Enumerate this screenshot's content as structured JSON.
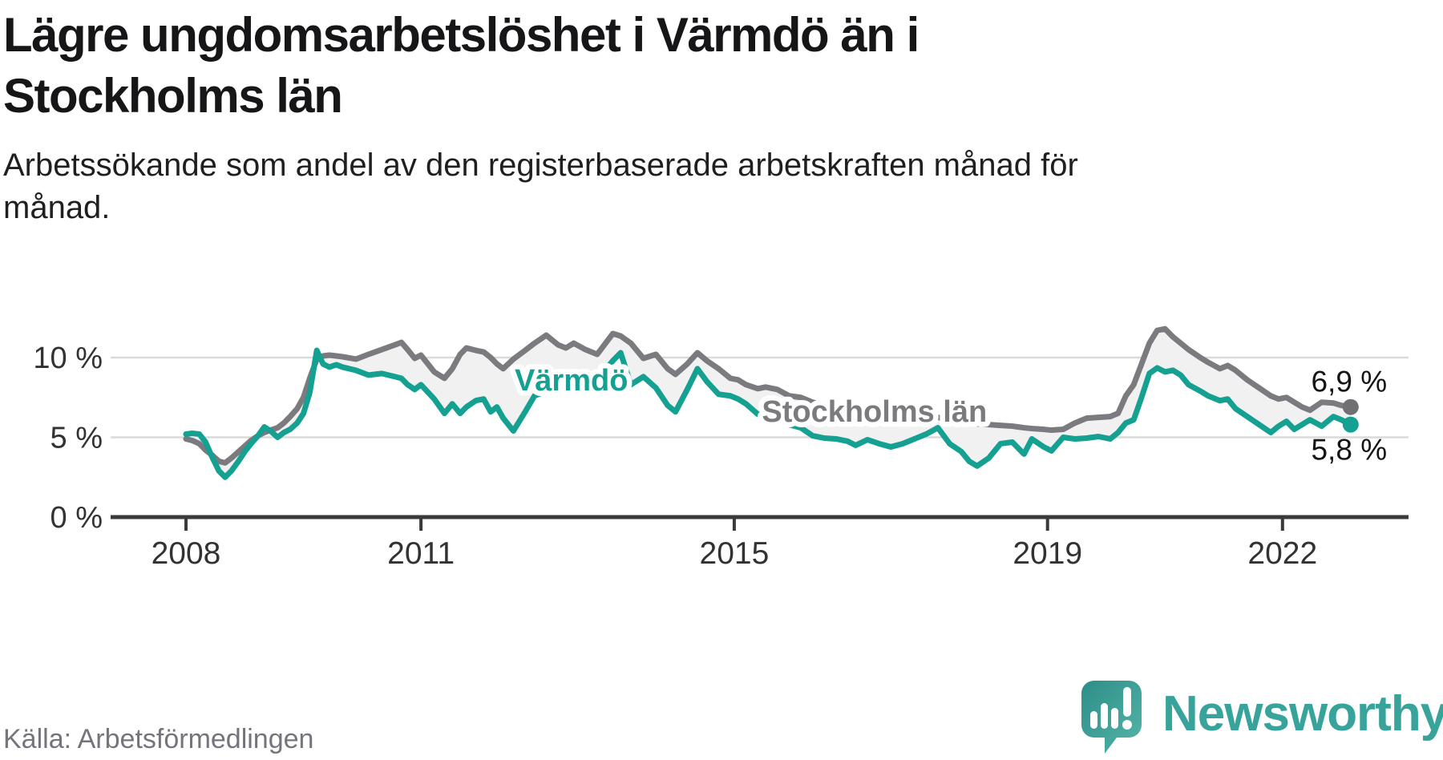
{
  "header": {
    "title": "Lägre ungdomsarbetslöshet i Värmdö än i\nStockholms län",
    "subtitle": "Arbetssökande som andel av den registerbaserade arbetskraften månad för\nmånad."
  },
  "footer": {
    "source": "Källa: Arbetsförmedlingen",
    "brand": "Newsworthy"
  },
  "chart_data": {
    "type": "line",
    "title": "Lägre ungdomsarbetslöshet i Värmdö än i Stockholms län",
    "subtitle": "Arbetssökande som andel av den registerbaserade arbetskraften månad för månad.",
    "source": "Källa: Arbetsförmedlingen",
    "unit": "%",
    "frequency": "monthly",
    "grid": "horizontal",
    "legend": "inline-labels",
    "background": "#ffffff",
    "area_fill_between_series": "#f1f1f1",
    "x_range": [
      2008.0,
      2022.87
    ],
    "x": [
      2008.0,
      2008.08,
      2008.17,
      2008.25,
      2008.33,
      2008.42,
      2008.5,
      2008.58,
      2008.67,
      2008.75,
      2008.83,
      2008.92,
      2009.0,
      2009.08,
      2009.17,
      2009.25,
      2009.33,
      2009.42,
      2009.5,
      2009.58,
      2009.67,
      2009.75,
      2009.83,
      2009.92,
      2010.0,
      2010.17,
      2010.33,
      2010.5,
      2010.67,
      2010.75,
      2010.83,
      2010.92,
      2011.0,
      2011.17,
      2011.3,
      2011.4,
      2011.5,
      2011.58,
      2011.7,
      2011.8,
      2011.89,
      2011.97,
      2012.05,
      2012.18,
      2012.33,
      2012.45,
      2012.6,
      2012.75,
      2012.85,
      2012.95,
      2013.1,
      2013.25,
      2013.45,
      2013.55,
      2013.68,
      2013.84,
      2014.0,
      2014.15,
      2014.25,
      2014.4,
      2014.53,
      2014.65,
      2014.8,
      2014.95,
      2015.05,
      2015.15,
      2015.3,
      2015.4,
      2015.55,
      2015.7,
      2015.85,
      2016.0,
      2016.15,
      2016.3,
      2016.45,
      2016.55,
      2016.7,
      2016.85,
      2017.0,
      2017.15,
      2017.3,
      2017.45,
      2017.6,
      2017.75,
      2017.9,
      2018.0,
      2018.1,
      2018.25,
      2018.4,
      2018.55,
      2018.7,
      2018.8,
      2018.95,
      2019.05,
      2019.2,
      2019.35,
      2019.5,
      2019.65,
      2019.8,
      2019.9,
      2020.0,
      2020.1,
      2020.2,
      2020.3,
      2020.4,
      2020.5,
      2020.6,
      2020.7,
      2020.8,
      2020.95,
      2021.05,
      2021.2,
      2021.3,
      2021.4,
      2021.55,
      2021.7,
      2021.85,
      2021.95,
      2022.05,
      2022.15,
      2022.25,
      2022.35,
      2022.5,
      2022.65,
      2022.75,
      2022.87
    ],
    "series": [
      {
        "name": "Värmdö",
        "color": "#14a192",
        "dot_color": "#14a192",
        "end_value": 5.8,
        "end_label": "5,8 %",
        "label_anchor": {
          "x": 2012.92,
          "y": 8.59
        },
        "values": [
          5.2,
          5.25,
          5.2,
          4.7,
          3.8,
          2.9,
          2.5,
          2.9,
          3.5,
          4.1,
          4.6,
          5.1,
          5.65,
          5.4,
          5.0,
          5.3,
          5.5,
          5.9,
          6.5,
          7.8,
          10.45,
          9.6,
          9.4,
          9.55,
          9.4,
          9.2,
          8.9,
          9.0,
          8.8,
          8.7,
          8.3,
          8.0,
          8.3,
          7.4,
          6.5,
          7.1,
          6.5,
          6.9,
          7.3,
          7.4,
          6.6,
          6.9,
          6.2,
          5.4,
          6.6,
          7.6,
          7.9,
          8.1,
          8.2,
          8.3,
          8.45,
          8.6,
          9.8,
          10.3,
          8.3,
          8.8,
          8.1,
          7.0,
          6.6,
          8.0,
          9.3,
          8.5,
          7.7,
          7.6,
          7.4,
          7.1,
          6.45,
          6.3,
          6.2,
          5.8,
          5.6,
          5.1,
          4.95,
          4.9,
          4.75,
          4.5,
          4.85,
          4.6,
          4.4,
          4.6,
          4.9,
          5.2,
          5.6,
          4.6,
          4.1,
          3.5,
          3.2,
          3.7,
          4.6,
          4.7,
          3.95,
          4.9,
          4.4,
          4.15,
          5.0,
          4.9,
          4.95,
          5.05,
          4.9,
          5.3,
          5.9,
          6.1,
          7.5,
          9.0,
          9.35,
          9.1,
          9.2,
          8.9,
          8.3,
          7.9,
          7.6,
          7.3,
          7.4,
          6.8,
          6.3,
          5.8,
          5.3,
          5.7,
          6.0,
          5.5,
          5.8,
          6.1,
          5.7,
          6.3,
          6.1,
          5.8
        ]
      },
      {
        "name": "Stockholms län",
        "color": "#7a7a7f",
        "dot_color": "#6f6f74",
        "end_value": 6.9,
        "end_label": "6,9 %",
        "label_anchor": {
          "x": 2016.79,
          "y": 6.63
        },
        "values": [
          4.9,
          4.8,
          4.6,
          4.2,
          3.9,
          3.5,
          3.4,
          3.7,
          4.1,
          4.45,
          4.8,
          5.1,
          5.3,
          5.45,
          5.6,
          5.9,
          6.3,
          6.8,
          7.5,
          8.7,
          9.9,
          10.1,
          10.15,
          10.1,
          10.05,
          9.9,
          10.2,
          10.5,
          10.8,
          10.95,
          10.5,
          9.95,
          10.15,
          9.1,
          8.7,
          9.3,
          10.2,
          10.6,
          10.45,
          10.35,
          10.0,
          9.6,
          9.3,
          9.9,
          10.45,
          10.9,
          11.4,
          10.8,
          10.6,
          10.9,
          10.5,
          10.2,
          11.5,
          11.35,
          10.9,
          9.95,
          10.2,
          9.3,
          8.95,
          9.6,
          10.3,
          9.8,
          9.3,
          8.7,
          8.6,
          8.3,
          8.05,
          8.15,
          8.0,
          7.6,
          7.5,
          7.2,
          7.0,
          6.85,
          6.75,
          6.7,
          6.6,
          6.5,
          6.45,
          6.4,
          6.35,
          6.3,
          6.25,
          6.1,
          6.0,
          5.9,
          5.85,
          5.8,
          5.75,
          5.7,
          5.6,
          5.55,
          5.5,
          5.45,
          5.5,
          5.9,
          6.2,
          6.25,
          6.3,
          6.5,
          7.6,
          8.3,
          9.6,
          10.9,
          11.7,
          11.8,
          11.3,
          10.9,
          10.5,
          10.0,
          9.7,
          9.3,
          9.5,
          9.2,
          8.6,
          8.1,
          7.6,
          7.4,
          7.5,
          7.2,
          6.9,
          6.7,
          7.2,
          7.15,
          7.0,
          6.9
        ]
      }
    ],
    "x_axis": {
      "ticks": [
        {
          "value": 2008,
          "label": "2008"
        },
        {
          "value": 2011,
          "label": "2011"
        },
        {
          "value": 2015,
          "label": "2015"
        },
        {
          "value": 2019,
          "label": "2019"
        },
        {
          "value": 2022,
          "label": "2022"
        }
      ]
    },
    "y_axis": {
      "range": [
        0,
        13.3
      ],
      "ticks": [
        {
          "value": 0,
          "label": "0 %"
        },
        {
          "value": 5,
          "label": "5 %"
        },
        {
          "value": 10,
          "label": "10 %"
        }
      ]
    }
  }
}
